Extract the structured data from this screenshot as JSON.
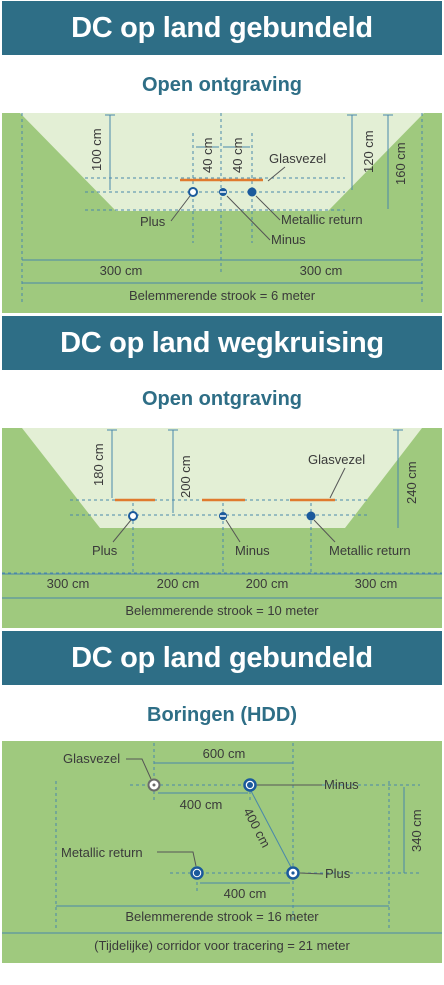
{
  "section1": {
    "banner": "DC op land gebundeld",
    "subtitle": "Open ontgraving",
    "dims": {
      "d100": "100 cm",
      "d40a": "40 cm",
      "d40b": "40 cm",
      "d120": "120 cm",
      "d160": "160 cm",
      "d300a": "300 cm",
      "d300b": "300 cm"
    },
    "labels": {
      "glasvezel": "Glasvezel",
      "plus": "Plus",
      "minus": "Minus",
      "metallic": "Metallic return"
    },
    "strook": "Belemmerende strook = 6 meter"
  },
  "section2": {
    "banner": "DC op land wegkruising",
    "subtitle": "Open ontgraving",
    "dims": {
      "d180": "180 cm",
      "d200v": "200 cm",
      "d240": "240 cm",
      "d300a": "300 cm",
      "d200a": "200 cm",
      "d200b": "200 cm",
      "d300b": "300 cm"
    },
    "labels": {
      "glasvezel": "Glasvezel",
      "plus": "Plus",
      "minus": "Minus",
      "metallic": "Metallic return"
    },
    "strook": "Belemmerende strook = 10 meter"
  },
  "section3": {
    "banner": "DC op land gebundeld",
    "subtitle": "Boringen (HDD)",
    "dims": {
      "d600": "600 cm",
      "d400a": "400 cm",
      "d400diag": "400 cm",
      "d340": "340 cm",
      "d400b": "400 cm"
    },
    "labels": {
      "glasvezel": "Glasvezel",
      "minus": "Minus",
      "metallic": "Metallic return",
      "plus": "Plus"
    },
    "strook": "Belemmerende strook = 16 meter",
    "corridor": "(Tijdelijke) corridor voor tracering = 21 meter"
  },
  "colors": {
    "banner": "#2e6e86",
    "ground": "#9fc97e",
    "trench": "#e3efd5",
    "line": "#4a88aa",
    "cable": "#1b5a9c",
    "fiber": "#e07a2e"
  }
}
